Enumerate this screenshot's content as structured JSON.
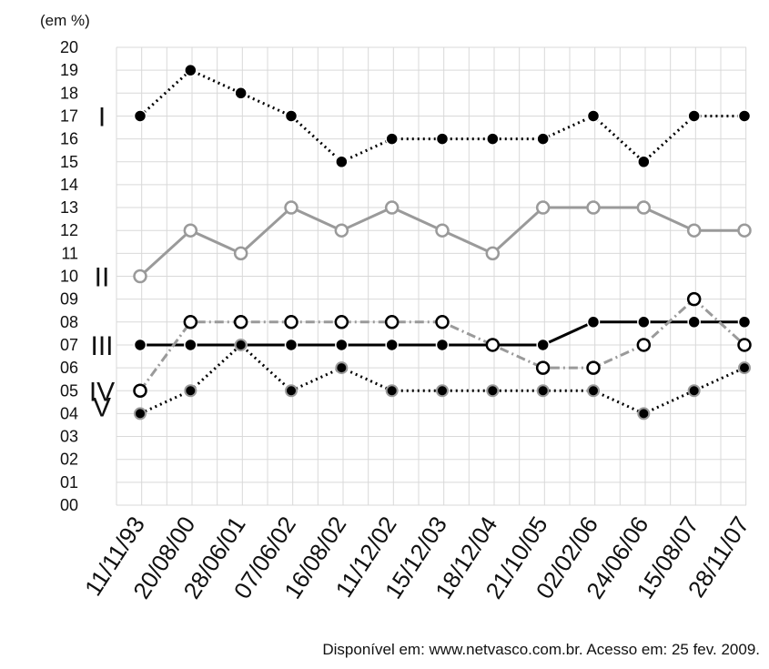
{
  "chart_data": {
    "type": "line",
    "y_unit_label": "(em %)",
    "y_ticks": [
      "00",
      "01",
      "02",
      "03",
      "04",
      "05",
      "06",
      "07",
      "08",
      "09",
      "10",
      "11",
      "12",
      "13",
      "14",
      "15",
      "16",
      "17",
      "18",
      "19",
      "20"
    ],
    "ylim": [
      0,
      20
    ],
    "grid": true,
    "categories": [
      "11/11/93",
      "20/08/00",
      "28/06/01",
      "07/06/02",
      "16/08/02",
      "11/12/02",
      "15/12/03",
      "18/12/04",
      "21/10/05",
      "02/02/06",
      "24/06/06",
      "15/08/07",
      "28/11/07"
    ],
    "series": [
      {
        "name": "I",
        "color": "#000000",
        "line": "dotted",
        "marker": "filled-black",
        "values": [
          17,
          19,
          18,
          17,
          15,
          16,
          16,
          16,
          16,
          17,
          15,
          17,
          17
        ]
      },
      {
        "name": "II",
        "color": "#9a9a9a",
        "line": "solid",
        "marker": "open-gray",
        "values": [
          10,
          12,
          11,
          13,
          12,
          13,
          12,
          11,
          13,
          13,
          13,
          12,
          12
        ]
      },
      {
        "name": "III",
        "color": "#000000",
        "line": "solid",
        "marker": "filled-black",
        "values": [
          7,
          7,
          7,
          7,
          7,
          7,
          7,
          7,
          7,
          8,
          8,
          8,
          8
        ]
      },
      {
        "name": "IV",
        "color": "#9a9a9a",
        "line": "dashdot",
        "marker": "open-black",
        "values": [
          5,
          8,
          8,
          8,
          8,
          8,
          8,
          7,
          6,
          6,
          7,
          9,
          7
        ]
      },
      {
        "name": "V",
        "color": "#000000",
        "line": "dotted",
        "marker": "filled-gray",
        "values": [
          4,
          5,
          7,
          5,
          6,
          5,
          5,
          5,
          5,
          5,
          4,
          5,
          6
        ]
      }
    ]
  },
  "source": "Disponível em: www.netvasco.com.br. Acesso em: 25 fev. 2009."
}
